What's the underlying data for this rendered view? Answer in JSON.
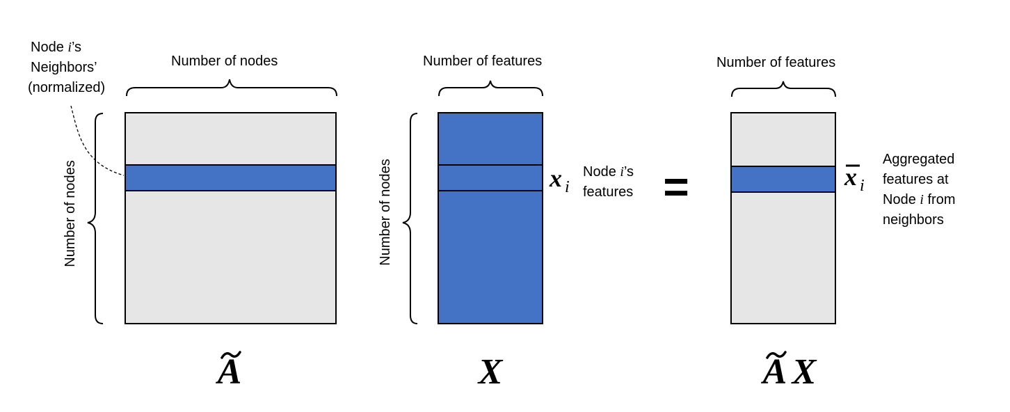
{
  "colors": {
    "matrix_fill": "#e7e6e6",
    "highlight_fill": "#4472c4",
    "stroke": "#000000"
  },
  "left": {
    "neighbors_label_line1_pre": "Node ",
    "neighbors_label_line1_var": "i",
    "neighbors_label_line1_post": "’s",
    "neighbors_label_line2": "Neighbors’",
    "neighbors_label_line3": "(normalized)",
    "top_label": "Number of nodes",
    "side_label": "Number of nodes",
    "symbol": "A"
  },
  "middle": {
    "top_label": "Number of features",
    "side_label": "Number of nodes",
    "row_symbol": "x",
    "row_subscript": "i",
    "row_label_line1_pre": "Node ",
    "row_label_line1_var": "i",
    "row_label_line1_post": "’s",
    "row_label_line2": "features",
    "symbol": "X"
  },
  "equals": "=",
  "right": {
    "top_label": "Number of features",
    "row_symbol": "x",
    "row_subscript": "i",
    "row_label_line1": "Aggregated",
    "row_label_line2": "features at",
    "row_label_line3_pre": "Node ",
    "row_label_line3_var": "i",
    "row_label_line3_post": " from",
    "row_label_line4": "neighbors",
    "symbol_a": "A",
    "symbol_x": "X"
  }
}
